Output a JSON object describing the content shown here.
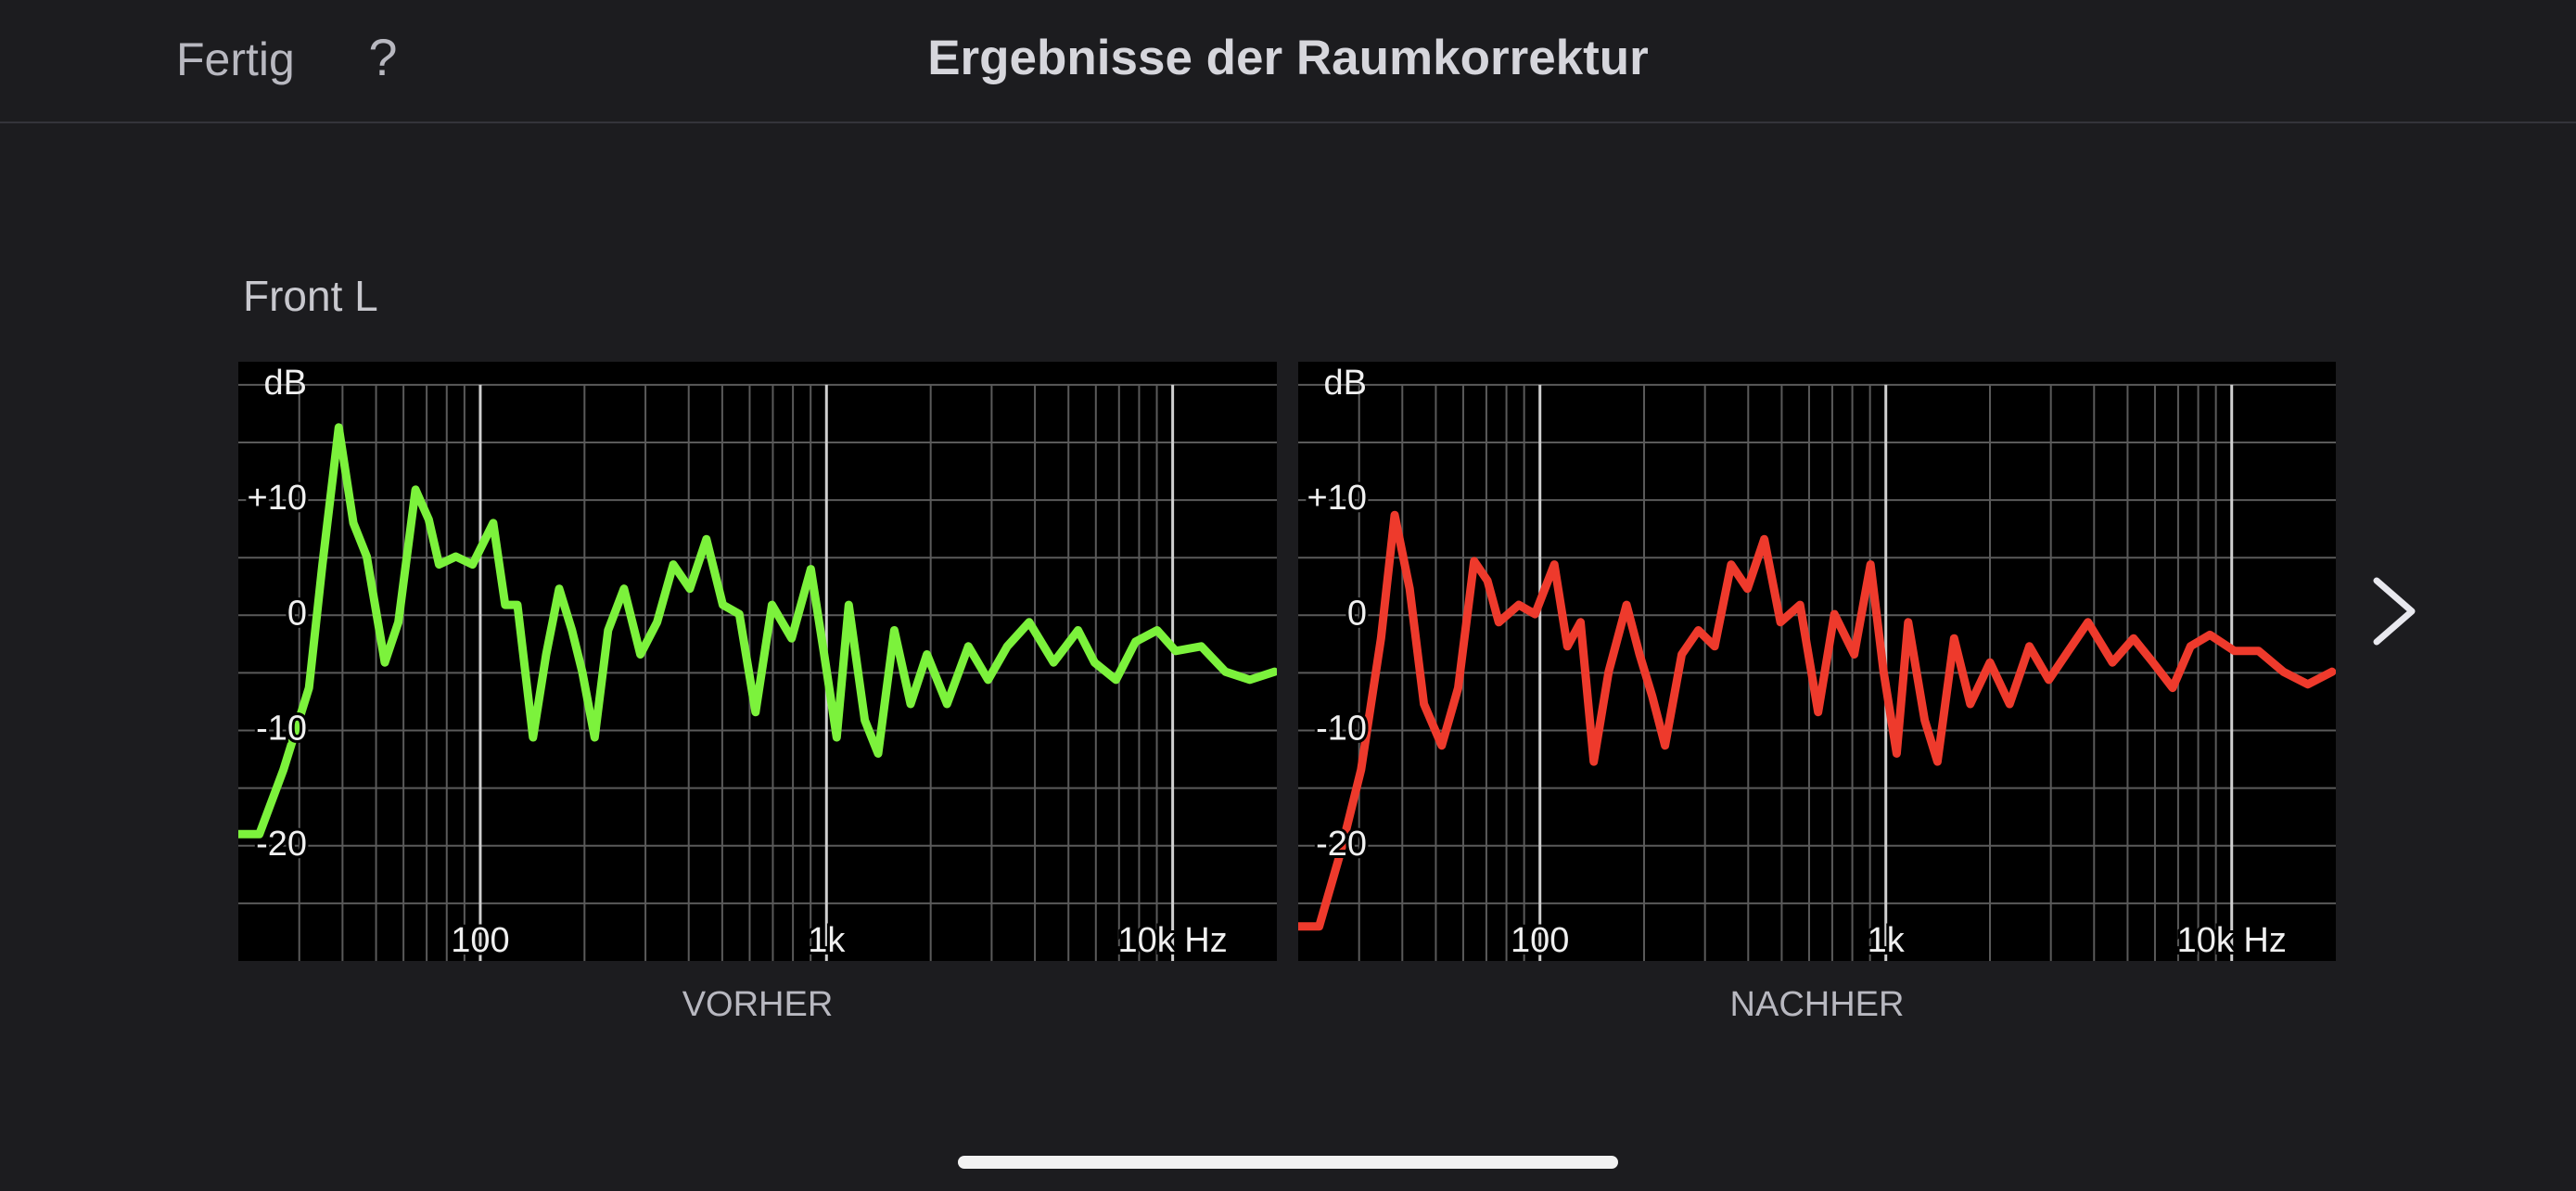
{
  "header": {
    "done": "Fertig",
    "help": "?",
    "title": "Ergebnisse der Raumkorrektur"
  },
  "section": "Front L",
  "chart_data": [
    {
      "type": "line",
      "title": "VORHER",
      "ylabel": "dB",
      "xlog": true,
      "xlim": [
        20,
        20000
      ],
      "ylim": [
        -30,
        22
      ],
      "xticks": [
        100,
        {
          "value": 1000,
          "label": "1k"
        },
        {
          "value": 10000,
          "label": "10k Hz"
        }
      ],
      "yticks": [
        {
          "value": 10,
          "label": "+10"
        },
        0,
        -10,
        -20
      ],
      "xgrid": [
        30,
        40,
        50,
        60,
        70,
        80,
        90,
        200,
        300,
        400,
        500,
        600,
        700,
        800,
        900,
        2000,
        3000,
        4000,
        5000,
        6000,
        7000,
        8000,
        9000
      ],
      "ygrid": [
        -25,
        -20,
        -15,
        -10,
        -5,
        0,
        5,
        10,
        15,
        20
      ],
      "x": [
        20,
        23,
        27,
        32,
        35,
        39,
        43,
        47,
        53,
        58,
        65,
        71,
        76,
        85,
        95,
        109,
        118,
        128,
        142,
        155,
        169,
        184,
        197,
        214,
        234,
        260,
        290,
        324,
        361,
        403,
        450,
        502,
        560,
        624,
        696,
        793,
        901,
        985,
        1070,
        1160,
        1290,
        1410,
        1570,
        1750,
        1950,
        2230,
        2570,
        2930,
        3330,
        3850,
        4530,
        5330,
        5950,
        6860,
        7810,
        9020,
        10200,
        12100,
        14200,
        16700,
        19700
      ],
      "series": [
        {
          "color": "#7cf23c",
          "values": [
            -19,
            -19,
            -13.4,
            -6.3,
            4.4,
            16.3,
            8,
            5.1,
            -4.1,
            -0.6,
            10.9,
            8.3,
            4.4,
            5.1,
            4.4,
            8,
            0.9,
            0.9,
            -10.6,
            -3.4,
            2.3,
            -1.3,
            -4.9,
            -10.6,
            -1.3,
            2.3,
            -3.4,
            -0.6,
            4.4,
            2.3,
            6.6,
            0.9,
            0.1,
            -8.4,
            0.9,
            -2,
            4,
            -3.4,
            -10.6,
            0.9,
            -9.1,
            -12,
            -1.3,
            -7.7,
            -3.4,
            -7.7,
            -2.7,
            -5.6,
            -2.7,
            -0.6,
            -4.1,
            -1.3,
            -4.1,
            -5.6,
            -2.3,
            -1.3,
            -3.1,
            -2.7,
            -4.9,
            -5.6,
            -4.9
          ]
        }
      ]
    },
    {
      "type": "line",
      "title": "NACHHER",
      "ylabel": "dB",
      "xlog": true,
      "xlim": [
        20,
        20000
      ],
      "ylim": [
        -30,
        22
      ],
      "xticks": [
        100,
        {
          "value": 1000,
          "label": "1k"
        },
        {
          "value": 10000,
          "label": "10k Hz"
        }
      ],
      "yticks": [
        {
          "value": 10,
          "label": "+10"
        },
        0,
        -10,
        -20
      ],
      "xgrid": [
        30,
        40,
        50,
        60,
        70,
        80,
        90,
        200,
        300,
        400,
        500,
        600,
        700,
        800,
        900,
        2000,
        3000,
        4000,
        5000,
        6000,
        7000,
        8000,
        9000
      ],
      "ygrid": [
        -25,
        -20,
        -15,
        -10,
        -5,
        0,
        5,
        10,
        15,
        20
      ],
      "x": [
        20,
        23,
        26.5,
        30.4,
        34.7,
        38,
        42,
        46.2,
        52,
        58,
        64.5,
        70.5,
        76,
        86.8,
        96.8,
        110,
        120,
        131,
        143,
        158,
        178,
        194,
        211,
        230,
        257,
        287,
        320,
        357,
        398,
        445,
        496,
        565,
        637,
        710,
        810,
        903,
        985,
        1075,
        1160,
        1295,
        1410,
        1575,
        1755,
        2000,
        2280,
        2600,
        2960,
        3370,
        3840,
        4520,
        5200,
        5920,
        6750,
        7600,
        8650,
        10180,
        11970,
        14100,
        16600,
        19500
      ],
      "series": [
        {
          "color": "#ee3a2c",
          "values": [
            -27,
            -27,
            -20.6,
            -13.4,
            -2,
            8.7,
            2.3,
            -7.7,
            -11.3,
            -6.3,
            4.7,
            3,
            -0.6,
            0.9,
            0.1,
            4.4,
            -2.7,
            -0.6,
            -12.7,
            -4.9,
            0.9,
            -3.4,
            -7,
            -11.3,
            -3.4,
            -1.3,
            -2.7,
            4.4,
            2.3,
            6.6,
            -0.6,
            0.9,
            -8.4,
            0.1,
            -3.4,
            4.4,
            -4.9,
            -12,
            -0.6,
            -9.1,
            -12.7,
            -2,
            -7.7,
            -4.1,
            -7.7,
            -2.7,
            -5.6,
            -3.1,
            -0.6,
            -4.1,
            -2,
            -4.1,
            -6.3,
            -2.7,
            -1.7,
            -3.1,
            -3.1,
            -4.9,
            -6,
            -4.9
          ]
        }
      ]
    }
  ]
}
